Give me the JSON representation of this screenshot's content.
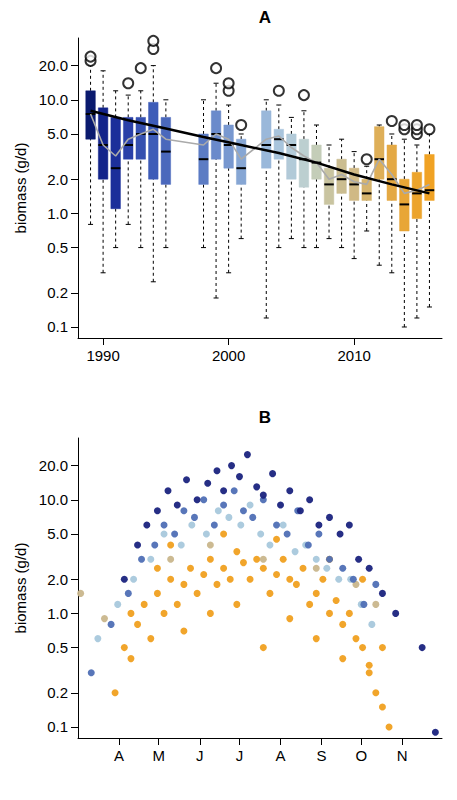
{
  "chart_data": [
    {
      "type": "boxplot",
      "title": "A",
      "ylabel": "biomass (g/d)",
      "log": "y",
      "xlim": [
        1988,
        2017
      ],
      "xticks": [
        1990,
        2000,
        2010
      ],
      "ylim": [
        0.08,
        35
      ],
      "yticks": [
        0.1,
        0.2,
        0.5,
        {
          "value": 1,
          "label": "1.0"
        },
        {
          "value": 2,
          "label": "2.0"
        },
        {
          "value": 5,
          "label": "5.0"
        },
        {
          "value": 10,
          "label": "10.0"
        },
        {
          "value": 20,
          "label": "20.0"
        }
      ],
      "boxes": [
        {
          "x": 1989,
          "min": 0.8,
          "q1": 4.5,
          "median": 7.5,
          "q3": 12,
          "max": 20,
          "outliers": [
            22,
            24
          ],
          "color": "#0a1a6e"
        },
        {
          "x": 1990,
          "min": 0.3,
          "q1": 2,
          "median": 4,
          "q3": 8.5,
          "max": 18,
          "outliers": [],
          "color": "#12238a"
        },
        {
          "x": 1991,
          "min": 0.5,
          "q1": 1.1,
          "median": 2.5,
          "q3": 7,
          "max": 12,
          "outliers": [],
          "color": "#1c2f9a"
        },
        {
          "x": 1992,
          "min": 0.8,
          "q1": 3,
          "median": 4,
          "q3": 7,
          "max": 11,
          "outliers": [
            14
          ],
          "color": "#2a40a8"
        },
        {
          "x": 1993,
          "min": 0.5,
          "q1": 3,
          "median": 5,
          "q3": 7,
          "max": 12,
          "outliers": [
            19
          ],
          "color": "#3550b0"
        },
        {
          "x": 1994,
          "min": 0.25,
          "q1": 2,
          "median": 5,
          "q3": 9.5,
          "max": 20,
          "outliers": [
            28,
            33
          ],
          "color": "#3d5cb8"
        },
        {
          "x": 1995,
          "min": 0.5,
          "q1": 1.8,
          "median": 3.5,
          "q3": 7,
          "max": 10,
          "outliers": [],
          "color": "#4a68bc"
        },
        {
          "x": 1998,
          "min": 0.5,
          "q1": 1.8,
          "median": 3,
          "q3": 5,
          "max": 10,
          "outliers": [],
          "color": "#5c7cc4"
        },
        {
          "x": 1999,
          "min": 0.18,
          "q1": 3,
          "median": 5,
          "q3": 8,
          "max": 14,
          "outliers": [
            19
          ],
          "color": "#6a8acb"
        },
        {
          "x": 2000,
          "min": 0.3,
          "q1": 2.5,
          "median": 4,
          "q3": 6,
          "max": 9,
          "outliers": [
            12,
            14
          ],
          "color": "#7898d0"
        },
        {
          "x": 2001,
          "min": 0.6,
          "q1": 1.8,
          "median": 2.5,
          "q3": 4.5,
          "max": 5,
          "outliers": [
            6
          ],
          "color": "#86a6d4"
        },
        {
          "x": 2003,
          "min": 0.12,
          "q1": 2.5,
          "median": 4,
          "q3": 8,
          "max": 10,
          "outliers": [],
          "color": "#9ab8da"
        },
        {
          "x": 2004,
          "min": 0.5,
          "q1": 3,
          "median": 4.5,
          "q3": 5.5,
          "max": 9,
          "outliers": [
            12
          ],
          "color": "#a8c4dc"
        },
        {
          "x": 2005,
          "min": 0.6,
          "q1": 2,
          "median": 4,
          "q3": 5,
          "max": 7,
          "outliers": [],
          "color": "#b2cad8"
        },
        {
          "x": 2006,
          "min": 0.5,
          "q1": 1.7,
          "median": 3,
          "q3": 4.5,
          "max": 8,
          "outliers": [
            11
          ],
          "color": "#bccfd0"
        },
        {
          "x": 2007,
          "min": 0.5,
          "q1": 2,
          "median": 2.8,
          "q3": 4,
          "max": 6,
          "outliers": [],
          "color": "#c4cdb8"
        },
        {
          "x": 2008,
          "min": 0.6,
          "q1": 1.2,
          "median": 1.8,
          "q3": 2.5,
          "max": 4,
          "outliers": [],
          "color": "#c9c4a0"
        },
        {
          "x": 2009,
          "min": 0.5,
          "q1": 1.5,
          "median": 2,
          "q3": 3,
          "max": 4.5,
          "outliers": [],
          "color": "#cbbd90"
        },
        {
          "x": 2010,
          "min": 0.4,
          "q1": 1.3,
          "median": 1.8,
          "q3": 2.5,
          "max": 3.5,
          "outliers": [],
          "color": "#d0b985"
        },
        {
          "x": 2011,
          "min": 0.7,
          "q1": 1.3,
          "median": 1.5,
          "q3": 2,
          "max": 2.6,
          "outliers": [
            3
          ],
          "color": "#d6b46e"
        },
        {
          "x": 2012,
          "min": 0.35,
          "q1": 2,
          "median": 3,
          "q3": 5.8,
          "max": 6,
          "outliers": [],
          "color": "#deaf58"
        },
        {
          "x": 2013,
          "min": 0.3,
          "q1": 1.3,
          "median": 2,
          "q3": 4,
          "max": 5,
          "outliers": [
            6.5
          ],
          "color": "#e4a944"
        },
        {
          "x": 2014,
          "min": 0.1,
          "q1": 0.7,
          "median": 1.2,
          "q3": 2,
          "max": 4.5,
          "outliers": [
            5.5,
            6
          ],
          "color": "#e8a636"
        },
        {
          "x": 2015,
          "min": 0.12,
          "q1": 0.9,
          "median": 1.5,
          "q3": 2.3,
          "max": 4,
          "outliers": [
            5,
            5.5,
            6
          ],
          "color": "#eca42c"
        },
        {
          "x": 2016,
          "min": 0.15,
          "q1": 1.3,
          "median": 1.6,
          "q3": 3.3,
          "max": 5,
          "outliers": [
            5.5
          ],
          "color": "#f0a224"
        }
      ],
      "series": [
        {
          "type": "line",
          "color": "#aaaaaa",
          "x": [
            1989,
            1990,
            1991,
            1992,
            1993,
            1994,
            1995,
            1998,
            1999,
            2000,
            2001,
            2003,
            2004,
            2005,
            2006,
            2007,
            2008,
            2009,
            2010,
            2011,
            2012,
            2013,
            2014,
            2015,
            2016
          ],
          "values": [
            7.5,
            4,
            3.2,
            4.5,
            5,
            5.5,
            4.5,
            4,
            5,
            4.5,
            3,
            4.5,
            4.8,
            3.8,
            3.2,
            2.8,
            2,
            2.2,
            1.9,
            1.8,
            3,
            2.2,
            1.5,
            1.6,
            1.8
          ]
        },
        {
          "type": "line",
          "color": "#000000",
          "x": [
            1989,
            1992,
            1995,
            1998,
            2001,
            2004,
            2007,
            2010,
            2013,
            2016
          ],
          "values": [
            8,
            6.6,
            5.6,
            4.7,
            4,
            3.4,
            2.8,
            2.2,
            1.8,
            1.5
          ]
        }
      ]
    },
    {
      "type": "scatter",
      "title": "B",
      "ylabel": "biomass (g/d)",
      "log": "y",
      "xlim": [
        60,
        335
      ],
      "xticks": [
        {
          "value": 91,
          "label": "A"
        },
        {
          "value": 121,
          "label": "M"
        },
        {
          "value": 152,
          "label": "J"
        },
        {
          "value": 182,
          "label": "J"
        },
        {
          "value": 213,
          "label": "A"
        },
        {
          "value": 244,
          "label": "S"
        },
        {
          "value": 274,
          "label": "O"
        },
        {
          "value": 305,
          "label": "N"
        }
      ],
      "ylim": [
        0.08,
        35
      ],
      "yticks": [
        0.1,
        0.2,
        0.5,
        {
          "value": 1,
          "label": "1.0"
        },
        {
          "value": 2,
          "label": "2.0"
        },
        {
          "value": 5,
          "label": "5.0"
        },
        {
          "value": 10,
          "label": "10.0"
        },
        {
          "value": 20,
          "label": "20.0"
        }
      ],
      "marker": "circle",
      "series": [
        {
          "color": "#f0a020",
          "x": [
            88,
            95,
            100,
            105,
            110,
            115,
            120,
            125,
            130,
            135,
            140,
            145,
            150,
            155,
            160,
            165,
            170,
            175,
            180,
            185,
            190,
            195,
            200,
            205,
            210,
            215,
            220,
            225,
            230,
            235,
            240,
            245,
            250,
            255,
            260,
            265,
            270,
            275,
            280,
            285,
            290,
            295,
            100,
            120,
            140,
            160,
            180,
            200,
            220,
            240,
            260,
            280,
            130,
            170,
            210,
            250,
            275,
            290
          ],
          "values": [
            0.2,
            0.5,
            1,
            0.8,
            1.2,
            0.6,
            1.5,
            1,
            2,
            1.2,
            1.8,
            2.5,
            1.5,
            2.2,
            3,
            1.8,
            2.5,
            2,
            3.5,
            2.8,
            2,
            3,
            2.5,
            1.5,
            2.2,
            3,
            2,
            1.8,
            2.5,
            1.2,
            1.5,
            2,
            1,
            1.3,
            0.8,
            1,
            0.6,
            0.5,
            0.35,
            0.2,
            0.15,
            0.1,
            0.4,
            2.5,
            0.7,
            1,
            1.2,
            0.5,
            0.9,
            0.6,
            0.4,
            0.3,
            4,
            5,
            4.5,
            3,
            2,
            0.5
          ]
        },
        {
          "color": "#c9b68c",
          "x": [
            62,
            80,
            130,
            160,
            200,
            240,
            270,
            285
          ],
          "values": [
            1.5,
            0.9,
            3,
            4,
            3,
            2.5,
            1.8,
            1.2
          ]
        },
        {
          "color": "#a8c8dc",
          "x": [
            75,
            90,
            102,
            115,
            125,
            138,
            146,
            157,
            166,
            174,
            183,
            190,
            198,
            205,
            215,
            224,
            232,
            240,
            248,
            257,
            266,
            274,
            282
          ],
          "values": [
            0.6,
            1.2,
            2,
            3,
            5,
            4,
            6,
            5,
            8,
            7,
            6,
            9,
            5,
            4,
            6,
            3.5,
            4,
            3,
            2.5,
            2,
            2,
            1.2,
            0.8
          ]
        },
        {
          "color": "#4f6fb5",
          "x": [
            70,
            85,
            98,
            108,
            118,
            125,
            133,
            140,
            148,
            155,
            163,
            170,
            178,
            185,
            192,
            200,
            210,
            218,
            226,
            234,
            242,
            250,
            260,
            268,
            276,
            285
          ],
          "values": [
            0.3,
            0.8,
            1.5,
            3,
            4,
            6,
            5,
            8,
            7,
            10,
            6,
            9,
            12,
            8,
            7,
            10,
            6,
            5,
            8,
            4,
            5,
            3,
            2.5,
            2,
            1.2,
            1.8
          ]
        },
        {
          "color": "#1a237e",
          "x": [
            95,
            105,
            112,
            120,
            128,
            135,
            142,
            150,
            158,
            165,
            170,
            176,
            182,
            188,
            195,
            200,
            207,
            213,
            220,
            228,
            235,
            242,
            250,
            258,
            265,
            272,
            280,
            290,
            300,
            320,
            330
          ],
          "values": [
            2,
            4,
            6,
            8,
            12,
            9,
            15,
            10,
            14,
            18,
            12,
            20,
            16,
            25,
            13,
            11,
            17,
            9,
            12,
            8,
            10,
            6,
            7,
            5,
            6,
            3,
            2.5,
            1.5,
            1,
            0.5,
            0.09
          ]
        }
      ]
    }
  ]
}
